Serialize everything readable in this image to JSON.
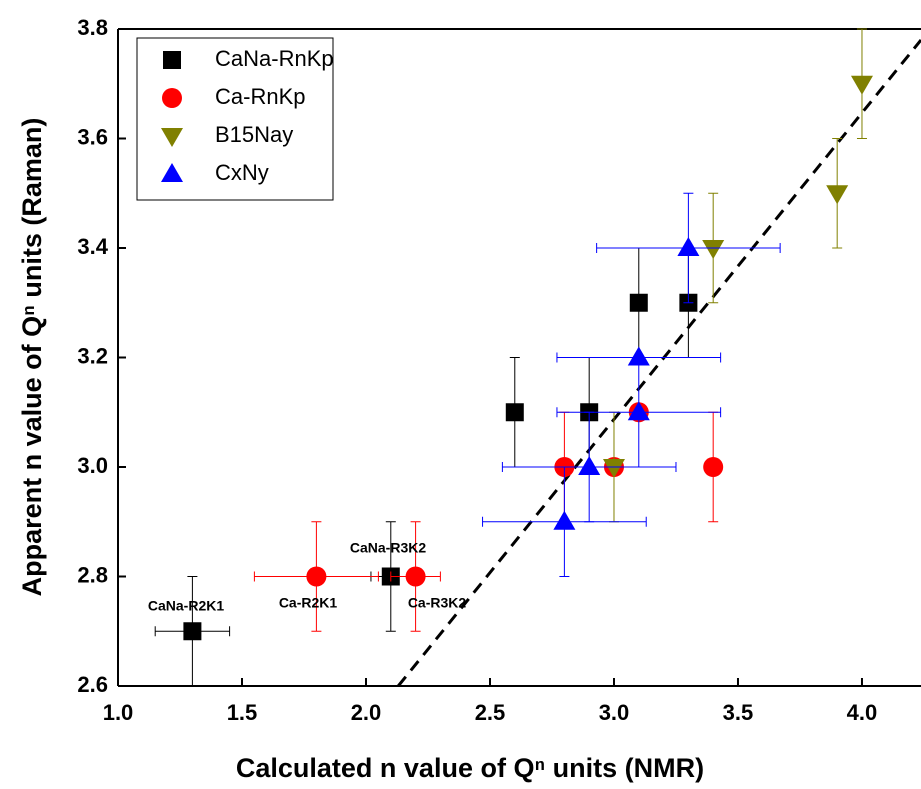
{
  "chart_data": {
    "type": "scatter",
    "x_label": "Calculated n value of Qⁿ units (NMR)",
    "y_label": "Apparent n value of Qⁿ units (Raman)",
    "xlim": [
      1.0,
      4.238
    ],
    "ylim": [
      2.6,
      3.8
    ],
    "xticks": [
      {
        "value": 1.0,
        "label": "1.0"
      },
      1.5,
      {
        "value": 2.0,
        "label": "2.0"
      },
      2.5,
      {
        "value": 3.0,
        "label": "3.0"
      },
      3.5,
      {
        "value": 4.0,
        "label": "4.0"
      }
    ],
    "yticks": [
      2.6,
      2.8,
      {
        "value": 3.0,
        "label": "3.0"
      },
      3.2,
      3.4,
      3.6,
      3.8
    ],
    "legend": "top-left",
    "series": [
      {
        "name": "CaNa-RnKp",
        "color": "#000000",
        "marker": "square",
        "x": [
          1.3,
          2.1,
          2.6,
          2.9,
          3.1,
          3.3
        ],
        "values": [
          2.7,
          2.8,
          3.1,
          3.1,
          3.3,
          3.3
        ],
        "yerr": [
          0.1,
          0.1,
          0.1,
          0.1,
          0.1,
          0.1
        ],
        "xerr": [
          0.15,
          0.08,
          null,
          null,
          null,
          null
        ]
      },
      {
        "name": "Ca-RnKp",
        "color": "#ff0000",
        "marker": "circle",
        "x": [
          1.8,
          2.2,
          2.8,
          3.0,
          3.1,
          3.4
        ],
        "values": [
          2.8,
          2.8,
          3.0,
          3.0,
          3.1,
          3.0
        ],
        "yerr": [
          0.1,
          0.1,
          0.1,
          null,
          null,
          0.1
        ],
        "xerr": [
          0.25,
          0.1,
          null,
          null,
          null,
          null
        ]
      },
      {
        "name": "B15Nay",
        "color": "#808000",
        "marker": "triangle-down",
        "x": [
          3.0,
          3.4,
          3.9,
          4.0
        ],
        "values": [
          3.0,
          3.4,
          3.5,
          3.7
        ],
        "yerr": [
          0.1,
          0.1,
          0.1,
          0.1
        ],
        "xerr": [
          null,
          null,
          null,
          null
        ]
      },
      {
        "name": "CxNy",
        "color": "#0000ff",
        "marker": "triangle-up",
        "x": [
          2.8,
          2.9,
          3.1,
          3.1,
          3.3
        ],
        "values": [
          2.9,
          3.0,
          3.1,
          3.2,
          3.4
        ],
        "yerr": [
          0.1,
          0.1,
          0.1,
          null,
          0.1
        ],
        "xerr": [
          0.33,
          0.35,
          0.33,
          0.33,
          0.37
        ]
      }
    ],
    "reference_line": {
      "x": [
        2.13,
        4.238
      ],
      "values": [
        2.6,
        3.78
      ]
    },
    "annotations": [
      "CaNa-R2K1",
      "CaNa-R3K2",
      "Ca-R2K1",
      "Ca-R3K2"
    ]
  }
}
